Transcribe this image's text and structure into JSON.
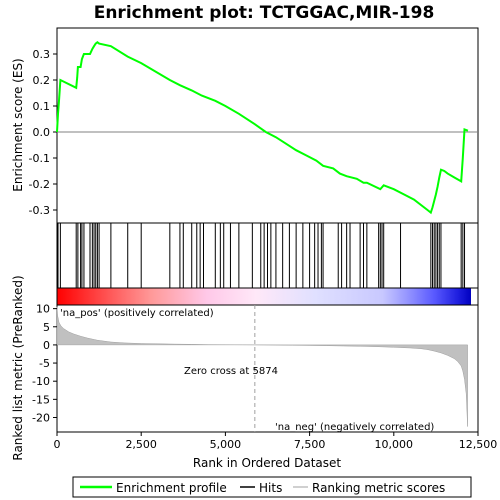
{
  "chart_data": {
    "type": "line",
    "title": "Enrichment plot: TCTGGAC,MIR-198",
    "panels": {
      "es": {
        "ylabel": "Enrichment score (ES)",
        "ylim": [
          -0.35,
          0.4
        ],
        "yticks": [
          0.3,
          0.2,
          0.1,
          0.0,
          -0.1,
          -0.2,
          -0.3
        ],
        "ytick_labels": [
          "0.3",
          "0.2",
          "0.1",
          "0.0",
          "-0.1",
          "-0.2",
          "-0.3"
        ],
        "series": [
          {
            "name": "Enrichment profile",
            "color": "#00ff00",
            "x": [
              0,
              30,
              60,
              100,
              570,
              600,
              620,
              700,
              740,
              800,
              980,
              1050,
              1100,
              1150,
              1200,
              1250,
              1600,
              2100,
              2500,
              3350,
              3650,
              4000,
              4300,
              4700,
              5000,
              5400,
              5874,
              6200,
              6500,
              6800,
              7100,
              7400,
              7700,
              7900,
              8200,
              8400,
              8600,
              8900,
              9100,
              9200,
              9600,
              9700,
              10000,
              10300,
              10600,
              11000,
              11100,
              11150,
              11200,
              11250,
              11300,
              11350,
              11400,
              11500,
              11600,
              11800,
              12000,
              12050,
              12100,
              12200
            ],
            "y": [
              0.0,
              0.07,
              0.12,
              0.2,
              0.17,
              0.21,
              0.25,
              0.25,
              0.28,
              0.3,
              0.3,
              0.32,
              0.33,
              0.34,
              0.345,
              0.34,
              0.33,
              0.29,
              0.265,
              0.2,
              0.18,
              0.16,
              0.14,
              0.12,
              0.1,
              0.07,
              0.03,
              0.0,
              -0.02,
              -0.045,
              -0.07,
              -0.09,
              -0.11,
              -0.13,
              -0.14,
              -0.16,
              -0.17,
              -0.18,
              -0.195,
              -0.195,
              -0.22,
              -0.205,
              -0.22,
              -0.24,
              -0.26,
              -0.3,
              -0.31,
              -0.29,
              -0.265,
              -0.24,
              -0.21,
              -0.175,
              -0.145,
              -0.15,
              -0.16,
              -0.175,
              -0.19,
              -0.1,
              0.01,
              0.005
            ]
          }
        ]
      },
      "hits": {
        "label": "Hits",
        "positions": [
          30,
          100,
          570,
          620,
          700,
          740,
          800,
          980,
          1050,
          1100,
          1150,
          1200,
          1250,
          1600,
          2100,
          2500,
          3350,
          3650,
          3750,
          4000,
          4150,
          4250,
          4350,
          4700,
          4850,
          4950,
          5150,
          5400,
          5800,
          6050,
          6150,
          6250,
          6350,
          6500,
          6700,
          6900,
          7100,
          7300,
          7500,
          7650,
          7750,
          7850,
          7900,
          8350,
          8450,
          8600,
          8700,
          9000,
          9100,
          9200,
          9550,
          9600,
          9650,
          9700,
          10200,
          11100,
          11150,
          11200,
          11250,
          11300,
          11350,
          11400,
          12000,
          12050,
          12100
        ]
      },
      "ranking": {
        "xlabel": "Rank in Ordered Dataset",
        "ylabel": "Ranked list metric (PreRanked)",
        "ylim": [
          -24,
          11
        ],
        "yticks": [
          10,
          5,
          0,
          -5,
          -10,
          -15,
          -20
        ],
        "ytick_labels": [
          "10",
          "5",
          "0",
          "-5",
          "-10",
          "-15",
          "-20"
        ],
        "xlim": [
          0,
          12500
        ],
        "xticks": [
          0,
          2500,
          5000,
          7500,
          10000,
          12500
        ],
        "xtick_labels": [
          "0",
          "2,500",
          "5,000",
          "7,500",
          "10,000",
          "12,500"
        ],
        "metric_profile": {
          "name": "Ranking metric scores",
          "color": "#c0c0c0",
          "x": [
            0,
            20,
            60,
            120,
            200,
            350,
            500,
            700,
            900,
            1200,
            1600,
            2000,
            2500,
            3000,
            3500,
            4000,
            4500,
            5000,
            5500,
            5874,
            6500,
            7000,
            7500,
            8000,
            8500,
            9000,
            9500,
            10000,
            10500,
            10800,
            11000,
            11200,
            11400,
            11600,
            11800,
            11900,
            12000,
            12050,
            12100,
            12150,
            12190
          ],
          "y": [
            10.5,
            8.0,
            6.2,
            5.2,
            4.5,
            3.6,
            3.0,
            2.4,
            1.9,
            1.3,
            0.8,
            0.55,
            0.4,
            0.3,
            0.22,
            0.16,
            0.1,
            0.06,
            0.03,
            0.0,
            -0.05,
            -0.1,
            -0.15,
            -0.22,
            -0.3,
            -0.38,
            -0.5,
            -0.65,
            -0.85,
            -1.05,
            -1.3,
            -1.7,
            -2.2,
            -2.9,
            -3.8,
            -4.6,
            -5.8,
            -7.2,
            -9.5,
            -13.5,
            -22.5
          ]
        },
        "zero_cross": 5874,
        "zero_cross_label": "Zero cross at 5874",
        "pos_label": "'na_pos' (positively correlated)",
        "neg_label": "'na_neg' (negatively correlated)",
        "pos_label_color": "#cc0000",
        "neg_label_color": "#0000cc"
      }
    },
    "legend": {
      "placement": "bottom",
      "entries": [
        {
          "label": "Enrichment profile",
          "color": "#00ff00"
        },
        {
          "label": "Hits",
          "color": "#000000"
        },
        {
          "label": "Ranking metric scores",
          "color": "#c0c0c0"
        }
      ]
    },
    "color_bar": {
      "stops": [
        {
          "rank": 0,
          "color": "#ff0000"
        },
        {
          "rank": 1600,
          "color": "#ff5a5a"
        },
        {
          "rank": 2800,
          "color": "#ff9a9a"
        },
        {
          "rank": 4400,
          "color": "#ffc8e8"
        },
        {
          "rank": 5874,
          "color": "#ffe8f8"
        },
        {
          "rank": 7600,
          "color": "#e0e0ff"
        },
        {
          "rank": 9600,
          "color": "#c8c8ff"
        },
        {
          "rank": 10400,
          "color": "#9090ff"
        },
        {
          "rank": 11100,
          "color": "#5a5aff"
        },
        {
          "rank": 11800,
          "color": "#2020e0"
        },
        {
          "rank": 12200,
          "color": "#0000c0"
        }
      ]
    }
  }
}
